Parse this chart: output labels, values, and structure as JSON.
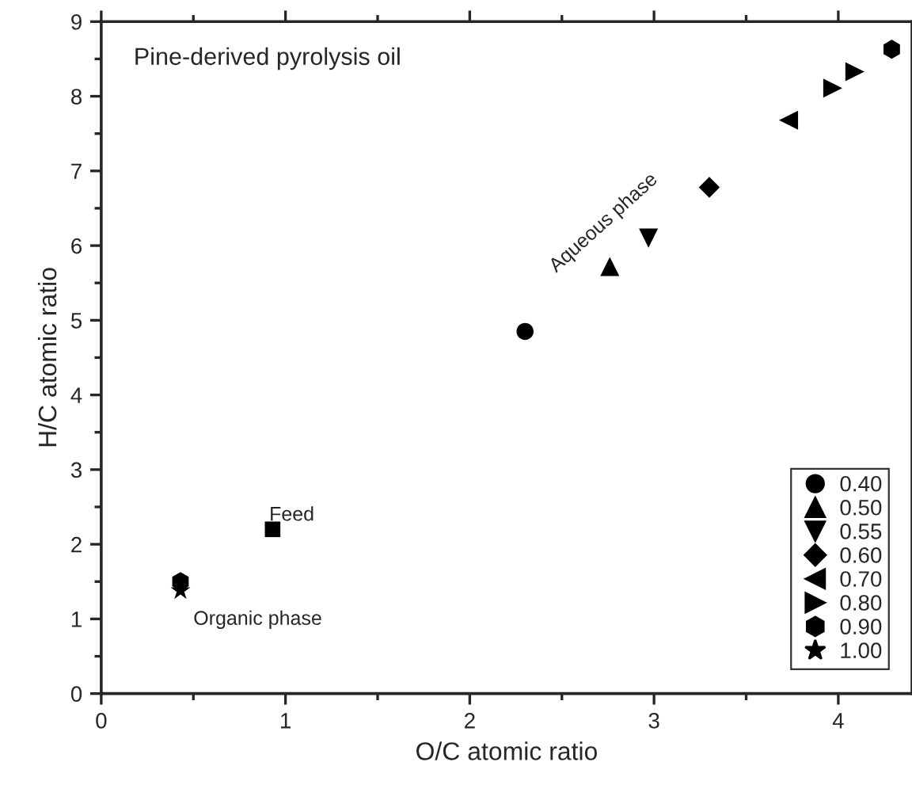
{
  "chart_data": {
    "type": "scatter",
    "xlabel": "O/C atomic ratio",
    "ylabel": "H/C atomic ratio",
    "xlim": [
      0,
      4.4
    ],
    "ylim": [
      0,
      9
    ],
    "xticks": [
      0,
      1,
      2,
      3,
      4
    ],
    "yticks": [
      0,
      1,
      2,
      3,
      4,
      5,
      6,
      7,
      8,
      9
    ],
    "grid": false,
    "legend": "bottom right",
    "annotations": [
      "Pine-derived pyrolysis oil",
      "Aqueous phase",
      "Feed",
      "Organic phase"
    ],
    "series": [
      {
        "name": "0.40",
        "color": "#000000",
        "marker": "circle",
        "x": [
          2.3
        ],
        "values": [
          4.85
        ]
      },
      {
        "name": "0.50",
        "color": "#000000",
        "marker": "triangle",
        "x": [
          2.76
        ],
        "values": [
          5.72
        ]
      },
      {
        "name": "0.55",
        "color": "#000000",
        "marker": "triangle_down",
        "x": [
          2.97
        ],
        "values": [
          6.1
        ]
      },
      {
        "name": "0.60",
        "color": "#000000",
        "marker": "diamond",
        "x": [
          3.3
        ],
        "values": [
          6.78
        ]
      },
      {
        "name": "0.70",
        "color": "#000000",
        "marker": "triangle_left",
        "x": [
          3.73
        ],
        "values": [
          7.68
        ]
      },
      {
        "name": "0.80",
        "color": "#000000",
        "marker": "triangle_right",
        "x": [
          3.97,
          4.09
        ],
        "values": [
          8.11,
          8.33
        ]
      },
      {
        "name": "0.90",
        "color": "#000000",
        "x": [
          0.43,
          4.29
        ],
        "values": [
          1.5,
          8.63
        ]
      },
      {
        "name": "1.00",
        "color": "#000000",
        "marker": "star",
        "x": [
          0.43
        ],
        "values": [
          1.38
        ]
      },
      {
        "color": "#000000",
        "marker": "square",
        "x": [
          0.93
        ],
        "values": [
          2.2
        ]
      }
    ]
  }
}
